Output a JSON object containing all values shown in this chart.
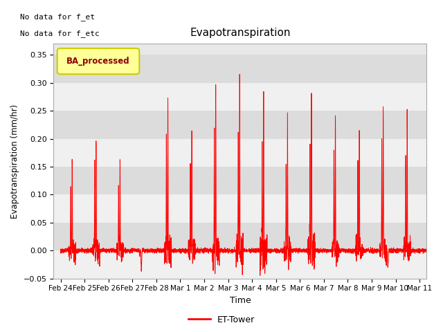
{
  "title": "Evapotranspiration",
  "xlabel": "Time",
  "ylabel": "Evapotranspiration (mm/hr)",
  "ylim": [
    -0.05,
    0.37
  ],
  "yticks": [
    -0.05,
    0.0,
    0.05,
    0.1,
    0.15,
    0.2,
    0.25,
    0.3,
    0.35
  ],
  "line_color": "red",
  "line_width": 0.7,
  "bg_color": "#e8e8e8",
  "bg_band_light": "#f0f0f0",
  "bg_band_dark": "#dcdcdc",
  "legend_box_label": "BA_processed",
  "legend_box_facecolor": "#ffff99",
  "legend_box_edgecolor": "#cccc00",
  "annotation1": "No data for f_et",
  "annotation2": "No data for f_etc",
  "bottom_legend_label": "ET-Tower",
  "x_tick_labels": [
    "Feb 24",
    "Feb 25",
    "Feb 26",
    "Feb 27",
    "Feb 28",
    "Mar 1",
    "Mar 2",
    "Mar 3",
    "Mar 4",
    "Mar 5",
    "Mar 6",
    "Mar 7",
    "Mar 8",
    "Mar 9",
    "Mar 10",
    "Mar 11"
  ],
  "x_tick_positions": [
    0,
    1,
    2,
    3,
    4,
    5,
    6,
    7,
    8,
    9,
    10,
    11,
    12,
    13,
    14,
    15
  ],
  "daily_peaks": [
    0.17,
    0.205,
    0.16,
    -0.04,
    0.267,
    0.222,
    0.29,
    0.295,
    0.278,
    0.232,
    0.275,
    0.241,
    0.21,
    0.256,
    0.255,
    0.315
  ],
  "figsize": [
    6.4,
    4.8
  ],
  "dpi": 100
}
